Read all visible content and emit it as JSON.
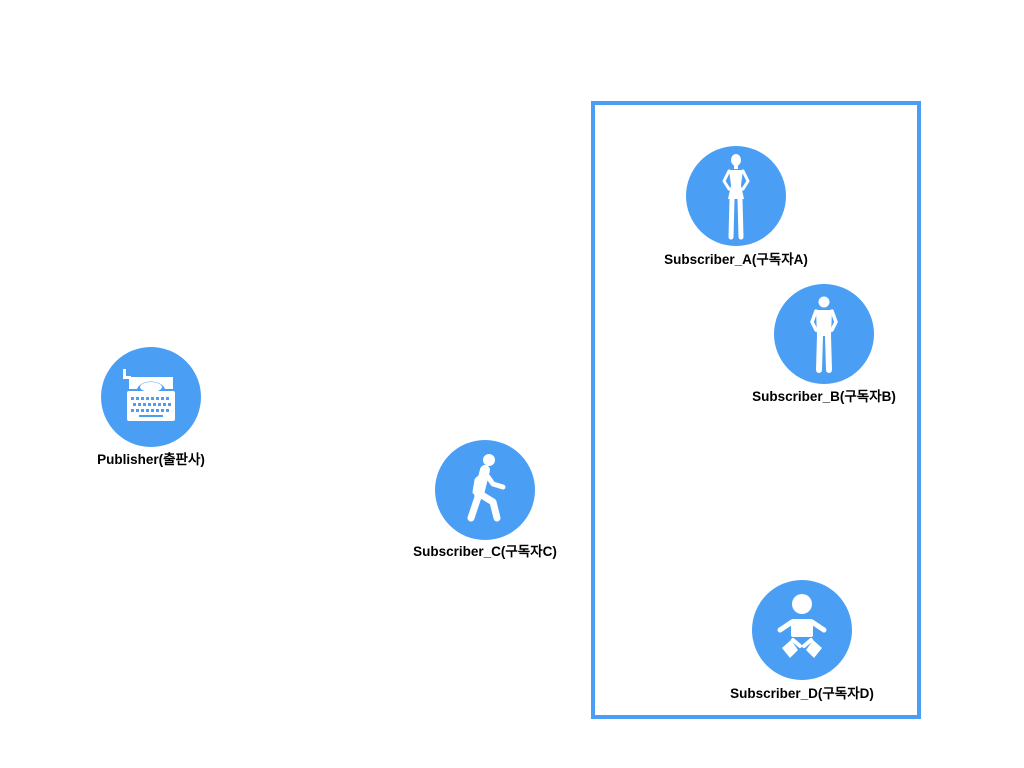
{
  "colors": {
    "node_fill": "#4a9ff5",
    "icon": "#ffffff",
    "group_border": "#4a9ff5",
    "label_text": "#000000"
  },
  "publisher": {
    "label": "Publisher(출판사)",
    "icon": "typewriter-icon"
  },
  "subscribers": {
    "a": {
      "label": "Subscriber_A(구독자A)",
      "icon": "woman-standing-icon"
    },
    "b": {
      "label": "Subscriber_B(구독자B)",
      "icon": "man-standing-icon"
    },
    "c": {
      "label": "Subscriber_C(구독자C)",
      "icon": "person-walking-icon"
    },
    "d": {
      "label": "Subscriber_D(구독자D)",
      "icon": "baby-icon"
    }
  }
}
